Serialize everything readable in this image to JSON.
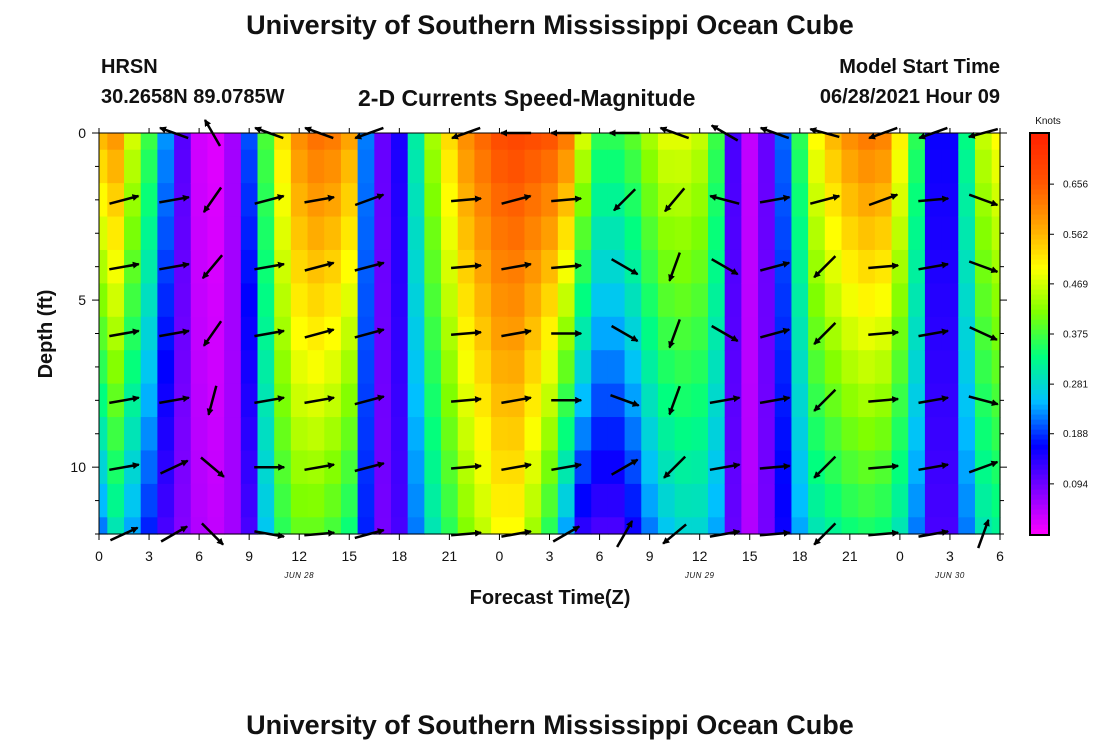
{
  "page": {
    "title_top": "University of Southern Mississippi Ocean Cube",
    "title_bottom": "University of Southern Mississippi Ocean Cube",
    "station_name": "HRSN",
    "station_coords": "30.2658N  89.0785W",
    "plot_title": "2-D Currents Speed-Magnitude",
    "model_start_label": "Model Start Time",
    "model_start_value": "06/28/2021 Hour 09"
  },
  "colors": {
    "colormap": [
      "#ff00ff",
      "#7f00ff",
      "#0000ff",
      "#00c0ff",
      "#00ff7f",
      "#7fff00",
      "#ffff00",
      "#ffa000",
      "#ff5000",
      "#ff2000"
    ],
    "arrow": "#000000",
    "axis": "#000000"
  },
  "chart_data": {
    "type": "heatmap",
    "title": "2-D Currents Speed-Magnitude",
    "xlabel": "Forecast Time(Z)",
    "ylabel": "Depth (ft)",
    "units": "Knots",
    "x_range_hours": [
      0,
      54
    ],
    "x_tick_labels": [
      "0",
      "3",
      "6",
      "9",
      "12",
      "15",
      "18",
      "21",
      "0",
      "3",
      "6",
      "9",
      "12",
      "15",
      "18",
      "21",
      "0",
      "3",
      "6"
    ],
    "date_labels": [
      {
        "text": "JUN 28",
        "hour": 12
      },
      {
        "text": "JUN 29",
        "hour": 36
      },
      {
        "text": "JUN 30",
        "hour": 51
      }
    ],
    "y_range_ft": [
      0,
      12
    ],
    "y_ticks": [
      0,
      5,
      10
    ],
    "y_tick_labels": [
      "0",
      "5",
      "10"
    ],
    "colorbar": {
      "title": "Knots",
      "range": [
        0.0,
        0.75
      ],
      "tick_values": [
        0.094,
        0.188,
        0.281,
        0.375,
        0.469,
        0.562,
        0.656
      ],
      "tick_labels": [
        "0.094",
        "0.188",
        "0.281",
        "0.375",
        "0.469",
        "0.562",
        "0.656"
      ]
    },
    "depths_ft": [
      0,
      1,
      2,
      3,
      4,
      5,
      6,
      7,
      8,
      9,
      10,
      11,
      12
    ],
    "time_hours": [
      0,
      1,
      2,
      3,
      4,
      5,
      6,
      7,
      8,
      9,
      10,
      11,
      12,
      13,
      14,
      15,
      16,
      17,
      18,
      19,
      20,
      21,
      22,
      23,
      24,
      25,
      26,
      27,
      28,
      29,
      30,
      31,
      32,
      33,
      34,
      35,
      36,
      37,
      38,
      39,
      40,
      41,
      42,
      43,
      44,
      45,
      46,
      47,
      48,
      49,
      50,
      51,
      52,
      53,
      54
    ],
    "speed_profile_surface": [
      0.56,
      0.59,
      0.47,
      0.37,
      0.23,
      0.11,
      0.03,
      0.02,
      0.06,
      0.2,
      0.38,
      0.52,
      0.6,
      0.63,
      0.62,
      0.58,
      0.22,
      0.1,
      0.15,
      0.31,
      0.44,
      0.53,
      0.6,
      0.64,
      0.67,
      0.68,
      0.67,
      0.66,
      0.62,
      0.47,
      0.36,
      0.36,
      0.39,
      0.44,
      0.48,
      0.48,
      0.46,
      0.37,
      0.12,
      0.04,
      0.1,
      0.21,
      0.36,
      0.5,
      0.56,
      0.6,
      0.62,
      0.61,
      0.51,
      0.36,
      0.16,
      0.16,
      0.33,
      0.46,
      0.5
    ],
    "speed_profile_bottom": [
      0.22,
      0.3,
      0.24,
      0.18,
      0.12,
      0.08,
      0.05,
      0.04,
      0.06,
      0.12,
      0.26,
      0.36,
      0.4,
      0.4,
      0.38,
      0.34,
      0.18,
      0.09,
      0.12,
      0.22,
      0.3,
      0.36,
      0.42,
      0.46,
      0.5,
      0.5,
      0.44,
      0.36,
      0.24,
      0.14,
      0.12,
      0.12,
      0.16,
      0.22,
      0.26,
      0.28,
      0.28,
      0.24,
      0.1,
      0.05,
      0.09,
      0.16,
      0.24,
      0.3,
      0.32,
      0.34,
      0.35,
      0.34,
      0.3,
      0.22,
      0.12,
      0.12,
      0.22,
      0.3,
      0.32
    ],
    "vector_times_hours": [
      1.5,
      4.5,
      6.8,
      10.2,
      13.2,
      16.2,
      22.0,
      25.0,
      28.0,
      31.5,
      34.5,
      37.5,
      40.5,
      43.5,
      47.0,
      50.0,
      53.0
    ],
    "vector_depths_ft": [
      0,
      2,
      4,
      6,
      8,
      10,
      12
    ],
    "vector_directions_deg_from_east_ccw": [
      [
        null,
        160,
        120,
        160,
        160,
        200,
        200,
        180,
        180,
        180,
        160,
        150,
        160,
        165,
        200,
        200,
        195
      ],
      [
        15,
        10,
        235,
        15,
        10,
        20,
        5,
        15,
        5,
        225,
        230,
        165,
        10,
        15,
        20,
        5,
        340
      ],
      [
        10,
        10,
        230,
        10,
        15,
        15,
        5,
        10,
        5,
        330,
        250,
        330,
        15,
        225,
        5,
        10,
        340
      ],
      [
        10,
        10,
        235,
        10,
        15,
        15,
        5,
        10,
        0,
        330,
        250,
        330,
        15,
        225,
        5,
        10,
        335
      ],
      [
        10,
        10,
        255,
        10,
        10,
        15,
        5,
        10,
        0,
        340,
        250,
        10,
        10,
        225,
        5,
        10,
        345
      ],
      [
        10,
        25,
        320,
        0,
        10,
        15,
        5,
        10,
        10,
        30,
        225,
        10,
        5,
        225,
        5,
        10,
        20
      ],
      [
        25,
        30,
        315,
        350,
        5,
        15,
        5,
        10,
        30,
        60,
        220,
        10,
        5,
        225,
        5,
        10,
        70
      ]
    ]
  }
}
